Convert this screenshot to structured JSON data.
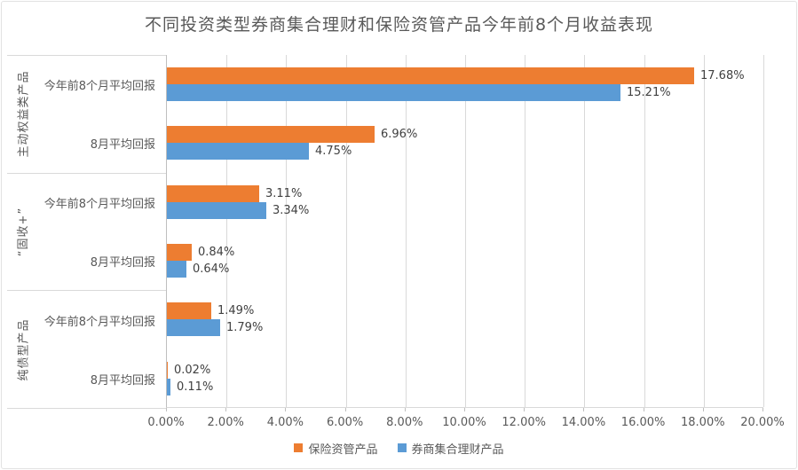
{
  "chart_data": {
    "type": "bar",
    "orientation": "horizontal",
    "title": "不同投资类型券商集合理财和保险资管产品今年前8个月收益表现",
    "group_labels": [
      "主动权益类产品",
      "“固收+”",
      "纯债型产品"
    ],
    "categories": [
      "今年前8个月平均回报",
      "8月平均回报",
      "今年前8个月平均回报",
      "8月平均回报",
      "今年前8个月平均回报",
      "8月平均回报"
    ],
    "series": [
      {
        "id": "insurance-asset-mgmt",
        "name": "保险资管产品",
        "color": "#ED7D31",
        "values": [
          17.68,
          6.96,
          3.11,
          0.84,
          1.49,
          0.02
        ],
        "labels": [
          "17.68%",
          "6.96%",
          "3.11%",
          "0.84%",
          "1.49%",
          "0.02%"
        ]
      },
      {
        "id": "brokerage-wealth-mgmt",
        "name": "券商集合理财产品",
        "color": "#5B9BD5",
        "values": [
          15.21,
          4.75,
          3.34,
          0.64,
          1.79,
          0.11
        ],
        "labels": [
          "15.21%",
          "4.75%",
          "3.34%",
          "0.64%",
          "1.79%",
          "0.11%"
        ]
      }
    ],
    "xlim": [
      0,
      20
    ],
    "x_ticks": [
      "0.00%",
      "2.00%",
      "4.00%",
      "6.00%",
      "8.00%",
      "10.00%",
      "12.00%",
      "14.00%",
      "16.00%",
      "18.00%",
      "20.00%"
    ],
    "grid": true,
    "legend_position": "bottom",
    "colors": {
      "grid": "#d9d9d9",
      "axis_text": "#595959",
      "value_label_text": "#404040"
    }
  }
}
